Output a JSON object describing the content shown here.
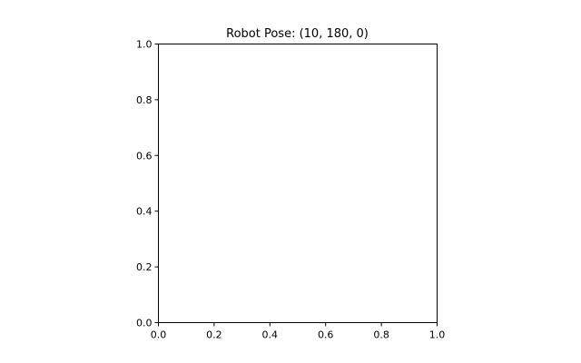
{
  "chart_data": {
    "type": "scatter",
    "title": "Robot Pose: (10, 180,  0)",
    "xlabel": "",
    "ylabel": "",
    "xlim": [
      0.0,
      1.0
    ],
    "ylim": [
      0.0,
      1.0
    ],
    "grid": false,
    "x_ticks": [
      "0.0",
      "0.2",
      "0.4",
      "0.6",
      "0.8",
      "1.0"
    ],
    "y_ticks": [
      "0.0",
      "0.2",
      "0.4",
      "0.6",
      "0.8",
      "1.0"
    ],
    "series": []
  }
}
